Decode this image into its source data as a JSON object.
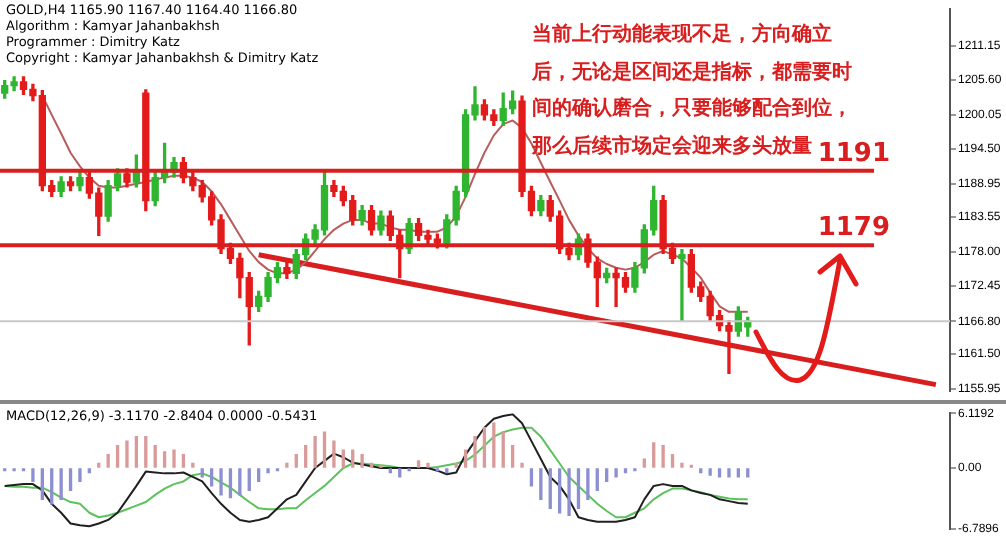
{
  "chart_data": [
    {
      "type": "candlestick",
      "title": "GOLD,H4  1165.90 1167.40 1164.40 1166.80",
      "annotations": [
        "Algorithm : Kamyar Jahanbakhsh",
        "Programmer : Dimitry Katz",
        "Copyright : Kamyar Jahanbakhsh & Dimitry Katz",
        "当前上行动能表现不足，方向确立后，无论是区间还是指标，都需要时间的确认磨合，只要能够配合到位，那么后续市场定会迎来多头放量"
      ],
      "categories": [
        null,
        null,
        null,
        null,
        null,
        null,
        null,
        null,
        null,
        null,
        null,
        null,
        null,
        null,
        null,
        null,
        null,
        null,
        null,
        null,
        null,
        null,
        null,
        null,
        null,
        null,
        null,
        null,
        null,
        null,
        null,
        null,
        null,
        null,
        null,
        null,
        null,
        null,
        null,
        null,
        null,
        null,
        null,
        null,
        null,
        null,
        null,
        null,
        null,
        null,
        null,
        null,
        null,
        null,
        null,
        null,
        null,
        null,
        null,
        null,
        null,
        null,
        null,
        null,
        null,
        null,
        null,
        null,
        null,
        null,
        null,
        null,
        null,
        null,
        null,
        null,
        null,
        null,
        null,
        null,
        null,
        null,
        null,
        null,
        null,
        null,
        null,
        null,
        null,
        null,
        null,
        null,
        null,
        null,
        null,
        null,
        null,
        null,
        null,
        null,
        null
      ],
      "ohlc": [
        [
          1203.5,
          1205.5,
          1202.7,
          1204.7
        ],
        [
          1204.7,
          1206.1,
          1203.9,
          1205.3
        ],
        [
          1205.3,
          1206.1,
          1203.3,
          1204.1
        ],
        [
          1204.1,
          1204.9,
          1202.3,
          1203.1
        ],
        [
          1203.1,
          1203.9,
          1187.8,
          1188.6
        ],
        [
          1188.6,
          1189.4,
          1186.9,
          1187.7
        ],
        [
          1187.7,
          1190.0,
          1186.9,
          1189.2
        ],
        [
          1189.2,
          1190.0,
          1187.8,
          1188.6
        ],
        [
          1188.6,
          1190.7,
          1187.8,
          1189.9
        ],
        [
          1189.9,
          1190.7,
          1186.6,
          1187.4
        ],
        [
          1187.4,
          1188.2,
          1180.6,
          1183.7
        ],
        [
          1183.7,
          1189.4,
          1182.9,
          1188.6
        ],
        [
          1188.6,
          1191.3,
          1187.8,
          1190.5
        ],
        [
          1190.5,
          1191.3,
          1188.4,
          1189.2
        ],
        [
          1189.2,
          1193.5,
          1188.4,
          1190.8
        ],
        [
          1203.5,
          1204.0,
          1184.6,
          1186.2
        ],
        [
          1186.2,
          1190.7,
          1185.4,
          1189.9
        ],
        [
          1189.9,
          1195.4,
          1189.1,
          1190.8
        ],
        [
          1190.8,
          1193.1,
          1190.0,
          1192.3
        ],
        [
          1192.3,
          1193.1,
          1189.1,
          1189.9
        ],
        [
          1189.9,
          1190.7,
          1187.8,
          1188.6
        ],
        [
          1188.6,
          1189.4,
          1186.0,
          1186.8
        ],
        [
          1186.8,
          1187.6,
          1182.3,
          1183.1
        ],
        [
          1183.1,
          1183.9,
          1177.7,
          1178.5
        ],
        [
          1178.5,
          1179.3,
          1176.1,
          1176.9
        ],
        [
          1176.9,
          1177.7,
          1170.6,
          1173.8
        ],
        [
          1173.8,
          1174.6,
          1163.0,
          1169.2
        ],
        [
          1169.2,
          1171.6,
          1168.4,
          1170.8
        ],
        [
          1170.8,
          1174.6,
          1170.0,
          1173.8
        ],
        [
          1173.8,
          1176.2,
          1173.0,
          1175.4
        ],
        [
          1175.4,
          1176.2,
          1173.7,
          1174.5
        ],
        [
          1174.5,
          1178.3,
          1173.7,
          1177.5
        ],
        [
          1177.5,
          1180.8,
          1176.7,
          1180.0
        ],
        [
          1180.0,
          1182.3,
          1179.2,
          1181.5
        ],
        [
          1181.5,
          1191.0,
          1180.7,
          1188.6
        ],
        [
          1188.6,
          1189.4,
          1186.9,
          1187.7
        ],
        [
          1187.7,
          1188.5,
          1185.4,
          1186.2
        ],
        [
          1186.2,
          1187.0,
          1182.3,
          1183.1
        ],
        [
          1183.1,
          1185.4,
          1182.3,
          1184.6
        ],
        [
          1184.6,
          1185.4,
          1180.7,
          1181.5
        ],
        [
          1181.5,
          1184.5,
          1180.7,
          1183.7
        ],
        [
          1183.7,
          1184.5,
          1179.8,
          1180.6
        ],
        [
          1180.6,
          1181.4,
          1173.8,
          1178.5
        ],
        [
          1178.5,
          1183.3,
          1177.7,
          1182.5
        ],
        [
          1182.5,
          1183.3,
          1179.8,
          1180.6
        ],
        [
          1180.6,
          1181.4,
          1179.2,
          1180.0
        ],
        [
          1180.0,
          1180.8,
          1178.6,
          1179.4
        ],
        [
          1179.4,
          1183.9,
          1178.6,
          1183.1
        ],
        [
          1183.1,
          1188.5,
          1182.3,
          1187.7
        ],
        [
          1187.7,
          1200.8,
          1186.9,
          1200.0
        ],
        [
          1200.0,
          1204.5,
          1199.2,
          1201.6
        ],
        [
          1201.6,
          1202.4,
          1199.2,
          1200.0
        ],
        [
          1200.0,
          1200.8,
          1198.3,
          1199.1
        ],
        [
          1199.1,
          1203.5,
          1198.3,
          1201.0
        ],
        [
          1201.0,
          1203.8,
          1200.2,
          1202.2
        ],
        [
          1202.2,
          1203.0,
          1186.9,
          1187.7
        ],
        [
          1187.7,
          1188.5,
          1183.8,
          1184.6
        ],
        [
          1184.6,
          1187.0,
          1183.8,
          1186.2
        ],
        [
          1186.2,
          1187.0,
          1182.9,
          1183.7
        ],
        [
          1183.7,
          1184.5,
          1177.7,
          1178.5
        ],
        [
          1178.5,
          1179.3,
          1176.7,
          1177.5
        ],
        [
          1177.5,
          1180.8,
          1176.7,
          1180.0
        ],
        [
          1180.0,
          1180.8,
          1175.5,
          1176.3
        ],
        [
          1176.3,
          1177.1,
          1169.2,
          1173.8
        ],
        [
          1173.8,
          1175.3,
          1173.0,
          1174.5
        ],
        [
          1174.5,
          1175.3,
          1169.2,
          1173.8
        ],
        [
          1173.8,
          1174.6,
          1171.5,
          1172.3
        ],
        [
          1172.3,
          1176.2,
          1171.5,
          1175.4
        ],
        [
          1175.4,
          1182.3,
          1174.6,
          1181.5
        ],
        [
          1181.5,
          1188.5,
          1180.7,
          1186.2
        ],
        [
          1186.2,
          1187.0,
          1177.7,
          1178.5
        ],
        [
          1178.5,
          1179.3,
          1176.1,
          1176.9
        ],
        [
          1176.9,
          1178.3,
          1166.8,
          1177.5
        ],
        [
          1177.5,
          1178.3,
          1171.5,
          1172.3
        ],
        [
          1172.3,
          1173.1,
          1170.0,
          1170.8
        ],
        [
          1170.8,
          1171.6,
          1166.9,
          1167.7
        ],
        [
          1167.7,
          1168.5,
          1165.3,
          1166.1
        ],
        [
          1166.1,
          1166.9,
          1158.4,
          1165.2
        ],
        [
          1165.2,
          1169.1,
          1164.4,
          1168.3
        ],
        [
          1165.9,
          1167.4,
          1164.4,
          1166.8
        ],
        null,
        null,
        null,
        null,
        null,
        null,
        null,
        null,
        null,
        null,
        null,
        null,
        null,
        null,
        null,
        null,
        null,
        null,
        null,
        null,
        null
      ],
      "series": [
        {
          "type": "line",
          "color": "#b85c5c",
          "values": [
            null,
            null,
            null,
            null,
            1203.1,
            1200.0,
            1197.0,
            1193.9,
            1191.7,
            1189.9,
            1188.6,
            1188.3,
            1188.3,
            1188.6,
            1188.9,
            1189.2,
            1189.6,
            1189.9,
            1190.2,
            1190.2,
            1189.9,
            1189.2,
            1187.7,
            1185.6,
            1183.1,
            1180.6,
            1178.1,
            1176.3,
            1175.1,
            1174.5,
            1174.5,
            1175.1,
            1176.3,
            1178.1,
            1180.0,
            1181.5,
            1182.5,
            1183.1,
            1183.1,
            1182.5,
            1182.5,
            1181.9,
            1181.5,
            1181.5,
            1181.2,
            1181.2,
            1181.2,
            1181.9,
            1183.7,
            1186.8,
            1190.5,
            1193.9,
            1196.7,
            1198.5,
            1199.1,
            1197.9,
            1195.4,
            1192.3,
            1189.2,
            1186.2,
            1183.1,
            1180.6,
            1178.5,
            1176.9,
            1176.0,
            1175.4,
            1175.1,
            1175.4,
            1176.3,
            1177.5,
            1178.1,
            1177.5,
            1176.9,
            1175.4,
            1173.8,
            1171.4,
            1169.2,
            1168.3,
            1168.3,
            1168.3,
            null,
            null,
            null,
            null,
            null,
            null,
            null,
            null,
            null,
            null,
            null,
            null,
            null,
            null,
            null,
            null,
            null,
            null,
            null,
            null,
            null
          ]
        },
        {
          "type": "line",
          "color": "#d81e1e",
          "values": [
            null,
            null,
            null,
            null,
            null,
            null,
            null,
            null,
            null,
            null,
            null,
            null,
            null,
            null,
            null,
            null,
            null,
            null,
            null,
            null,
            null,
            null,
            null,
            null,
            null,
            null,
            null,
            1177.5,
            null,
            null,
            null,
            null,
            null,
            null,
            null,
            null,
            null,
            null,
            null,
            null,
            null,
            null,
            null,
            null,
            null,
            null,
            null,
            null,
            null,
            null,
            null,
            null,
            null,
            null,
            null,
            null,
            null,
            null,
            null,
            null,
            null,
            null,
            null,
            null,
            null,
            null,
            null,
            null,
            null,
            null,
            null,
            null,
            null,
            null,
            null,
            null,
            null,
            null,
            null,
            null,
            null,
            null,
            null,
            null,
            null,
            null,
            null,
            null,
            null,
            null,
            null,
            null,
            null,
            null,
            null,
            null,
            null,
            null,
            null,
            1156.6,
            null
          ]
        }
      ],
      "ylim": [
        1155.6,
        1217.0
      ],
      "yticks": [
        {
          "value": 1211.15,
          "label": "1211.15"
        },
        {
          "value": 1205.6,
          "label": "1205.60"
        },
        {
          "value": 1200.05,
          "label": "1200.05"
        },
        {
          "value": 1194.5,
          "label": "1194.50"
        },
        {
          "value": 1188.95,
          "label": "1188.95"
        },
        {
          "value": 1183.55,
          "label": "1183.55"
        },
        {
          "value": 1178.0,
          "label": "1178.00"
        },
        {
          "value": 1172.45,
          "label": "1172.45"
        },
        {
          "value": 1166.8,
          "label": "1166.80"
        },
        {
          "value": 1161.5,
          "label": "1161.50"
        },
        {
          "value": 1155.95,
          "label": "1155.95"
        }
      ],
      "ref_lines": [
        {
          "axis": "y",
          "value": 1191,
          "label": "1191",
          "color": "#d81e1e"
        },
        {
          "axis": "y",
          "value": 1179,
          "label": "1179",
          "color": "#d81e1e"
        },
        {
          "axis": "y",
          "value": 1166.8,
          "color": "#c8c8c8"
        }
      ],
      "legend": false
    },
    {
      "type": "bar",
      "title": "MACD(12,26,9) -3.1170 -2.8404 0.0000 -0.5431",
      "categories": [
        null,
        null,
        null,
        null,
        null,
        null,
        null,
        null,
        null,
        null,
        null,
        null,
        null,
        null,
        null,
        null,
        null,
        null,
        null,
        null,
        null,
        null,
        null,
        null,
        null,
        null,
        null,
        null,
        null,
        null,
        null,
        null,
        null,
        null,
        null,
        null,
        null,
        null,
        null,
        null,
        null,
        null,
        null,
        null,
        null,
        null,
        null,
        null,
        null,
        null,
        null,
        null,
        null,
        null,
        null,
        null,
        null,
        null,
        null,
        null,
        null,
        null,
        null,
        null,
        null,
        null,
        null,
        null,
        null,
        null,
        null,
        null,
        null,
        null,
        null,
        null,
        null,
        null,
        null,
        null,
        null,
        null,
        null,
        null,
        null,
        null,
        null,
        null,
        null,
        null,
        null,
        null,
        null,
        null,
        null,
        null,
        null,
        null,
        null,
        null,
        null
      ],
      "series": [
        {
          "type": "bar",
          "colors": [
            "#8c8fd0",
            "#8c8fd0",
            "#8c8fd0",
            "#8c8fd0",
            "#8c8fd0",
            "#8c8fd0",
            "#8c8fd0",
            "#8c8fd0",
            "#8c8fd0",
            "#8c8fd0",
            "#d99a9a",
            "#d99a9a",
            "#d99a9a",
            "#d99a9a",
            "#d99a9a",
            "#d99a9a",
            "#d99a9a",
            "#d99a9a",
            "#d99a9a",
            "#d99a9a",
            "#d99a9a",
            "#8c8fd0",
            "#8c8fd0",
            "#8c8fd0",
            "#8c8fd0",
            "#8c8fd0",
            "#8c8fd0",
            "#8c8fd0",
            "#8c8fd0",
            "#8c8fd0",
            "#d99a9a",
            "#d99a9a",
            "#d99a9a",
            "#d99a9a",
            "#d99a9a",
            "#d99a9a",
            "#d99a9a",
            "#d99a9a",
            "#d99a9a",
            "#d99a9a",
            "#d99a9a",
            "#8c8fd0",
            "#8c8fd0",
            "#8c8fd0",
            "#d99a9a",
            "#d99a9a",
            "#8c8fd0",
            "#8c8fd0",
            "#d99a9a",
            "#d99a9a",
            "#d99a9a",
            "#d99a9a",
            "#d99a9a",
            "#d99a9a",
            "#d99a9a",
            "#d99a9a",
            "#8c8fd0",
            "#8c8fd0",
            "#8c8fd0",
            "#8c8fd0",
            "#8c8fd0",
            "#8c8fd0",
            "#8c8fd0",
            "#8c8fd0",
            "#8c8fd0",
            "#8c8fd0",
            "#8c8fd0",
            "#8c8fd0",
            "#d99a9a",
            "#d99a9a",
            "#d99a9a",
            "#d99a9a",
            "#d99a9a",
            "#d99a9a",
            "#8c8fd0",
            "#8c8fd0",
            "#8c8fd0",
            "#8c8fd0",
            "#8c8fd0",
            "#8c8fd0",
            null,
            null,
            null,
            null,
            null,
            null,
            null,
            null,
            null,
            null,
            null,
            null,
            null,
            null,
            null,
            null,
            null,
            null,
            null,
            null,
            null
          ],
          "values": [
            -0.3,
            -0.3,
            -0.3,
            -1.5,
            -3.5,
            -4.0,
            -3.5,
            -2.5,
            -1.5,
            -0.5,
            0.5,
            1.5,
            2.5,
            3.0,
            3.5,
            3.5,
            2.5,
            1.8,
            2.0,
            1.5,
            0.5,
            -1.0,
            -2.0,
            -3.0,
            -3.3,
            -3.0,
            -2.5,
            -1.5,
            -0.5,
            -0.3,
            0.5,
            1.5,
            2.5,
            3.5,
            4.0,
            3.0,
            2.0,
            2.0,
            1.5,
            0.5,
            0.3,
            -0.5,
            -1.0,
            -0.3,
            0.8,
            0.5,
            -0.3,
            -0.5,
            0.5,
            2.0,
            3.5,
            4.5,
            5.0,
            4.0,
            2.5,
            0.5,
            -2.0,
            -3.5,
            -4.5,
            -5.0,
            -5.3,
            -4.5,
            -3.5,
            -2.5,
            -1.5,
            -1.0,
            -0.5,
            -0.3,
            1.0,
            2.8,
            2.5,
            1.5,
            0.5,
            0.3,
            -0.5,
            -0.8,
            -1.0,
            -1.0,
            -1.0,
            -1.0,
            null,
            null,
            null,
            null,
            null,
            null,
            null,
            null,
            null,
            null,
            null,
            null,
            null,
            null,
            null,
            null,
            null,
            null,
            null,
            null,
            null
          ]
        },
        {
          "type": "line",
          "color": "#202020",
          "values": [
            -2,
            -1.9,
            -1.8,
            -1.8,
            -2.5,
            -4,
            -5,
            -6.2,
            -6.4,
            -6.5,
            -6.2,
            -5.8,
            -5,
            -3.5,
            -2,
            -0.4,
            -0.5,
            -0.6,
            -0.6,
            -0.5,
            -1,
            -1.5,
            -2.8,
            -4,
            -5,
            -5.8,
            -6,
            -5.8,
            -5.5,
            -4.5,
            -3.5,
            -3,
            -1.5,
            0,
            0.8,
            1.6,
            1.2,
            0.6,
            0.4,
            0.2,
            0,
            0,
            0,
            0,
            0,
            0,
            -0.3,
            -0.7,
            -0.5,
            1.5,
            3,
            4.5,
            5.5,
            5.8,
            6,
            5,
            3,
            1,
            -1,
            -2,
            -3.5,
            -5.5,
            -5.8,
            -6,
            -6,
            -6,
            -5.8,
            -5.5,
            -3.5,
            -2,
            -1.8,
            -2,
            -2,
            -2.5,
            -2.8,
            -3,
            -3.5,
            -3.7,
            -3.9,
            -4,
            null,
            null,
            null,
            null,
            null,
            null,
            null,
            null,
            null,
            null,
            null,
            null,
            null,
            null,
            null,
            null,
            null,
            null,
            null,
            null,
            null
          ]
        },
        {
          "type": "line",
          "color": "#5cc25c",
          "values": [
            -2,
            -2.1,
            -2.1,
            -2.2,
            -2.2,
            -2.7,
            -3.3,
            -3.8,
            -4,
            -5,
            -5.5,
            -5.3,
            -5,
            -4.6,
            -4.2,
            -3.8,
            -3,
            -2.3,
            -1.8,
            -1.5,
            -0.8,
            -0.6,
            -1,
            -1.6,
            -2.2,
            -3,
            -3.8,
            -4.5,
            -4.6,
            -4.6,
            -4.5,
            -4.5,
            -3.6,
            -2.8,
            -2,
            -1,
            0,
            0.5,
            0.5,
            0.4,
            0.3,
            0.2,
            0,
            0,
            0,
            0,
            0.1,
            0.3,
            0.5,
            0.8,
            1.5,
            2.5,
            3.5,
            4,
            4.3,
            4.5,
            4.5,
            3.5,
            2,
            0.5,
            -1,
            -2,
            -3,
            -4,
            -4.8,
            -5.5,
            -5.5,
            -5,
            -4.5,
            -3.5,
            -2.8,
            -2.3,
            -2.3,
            -2.5,
            -2.7,
            -3,
            -3.2,
            -3.4,
            -3.5,
            -3.5,
            null,
            null,
            null,
            null,
            null,
            null,
            null,
            null,
            null,
            null,
            null,
            null,
            null,
            null,
            null,
            null,
            null,
            null,
            null,
            null,
            null
          ]
        }
      ],
      "ylim": [
        -6.7896,
        6.1192
      ],
      "yticks": [
        {
          "value": 6.1192,
          "label": "6.1192"
        },
        {
          "value": 0,
          "label": "0.00"
        },
        {
          "value": -6.7896,
          "label": "-6.7896"
        }
      ],
      "legend": false
    }
  ]
}
